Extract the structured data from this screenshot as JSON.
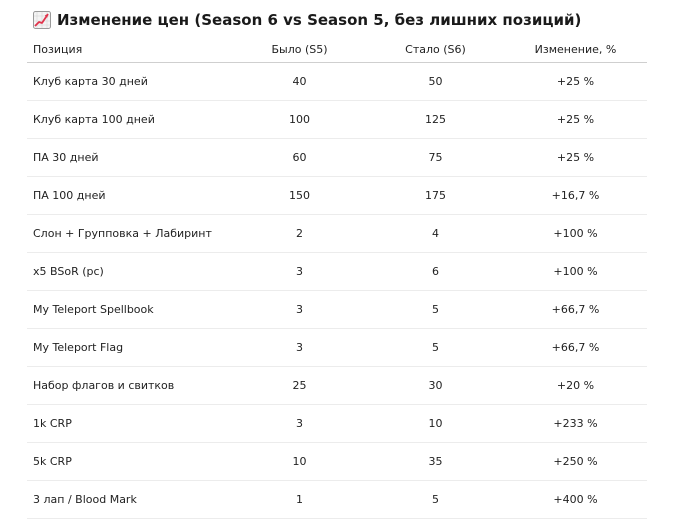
{
  "heading": {
    "icon": "chart-increasing-icon",
    "text": "Изменение цен (Season 6 vs Season 5, без лишних позиций)"
  },
  "table": {
    "headers": [
      "Позиция",
      "Было (S5)",
      "Стало (S6)",
      "Изменение, %"
    ],
    "rows": [
      [
        "Клуб карта 30 дней",
        "40",
        "50",
        "+25 %"
      ],
      [
        "Клуб карта 100 дней",
        "100",
        "125",
        "+25 %"
      ],
      [
        "ПА 30 дней",
        "60",
        "75",
        "+25 %"
      ],
      [
        "ПА 100 дней",
        "150",
        "175",
        "+16,7 %"
      ],
      [
        "Слон + Групповка + Лабиринт",
        "2",
        "4",
        "+100 %"
      ],
      [
        "x5 BSoR (pc)",
        "3",
        "6",
        "+100 %"
      ],
      [
        "My Teleport Spellbook",
        "3",
        "5",
        "+66,7 %"
      ],
      [
        "My Teleport Flag",
        "3",
        "5",
        "+66,7 %"
      ],
      [
        "Набор флагов и свитков",
        "25",
        "30",
        "+20 %"
      ],
      [
        "1k CRP",
        "3",
        "10",
        "+233 %"
      ],
      [
        "5k CRP",
        "10",
        "35",
        "+250 %"
      ],
      [
        "3 лап / Blood Mark",
        "1",
        "5",
        "+400 %"
      ]
    ]
  }
}
